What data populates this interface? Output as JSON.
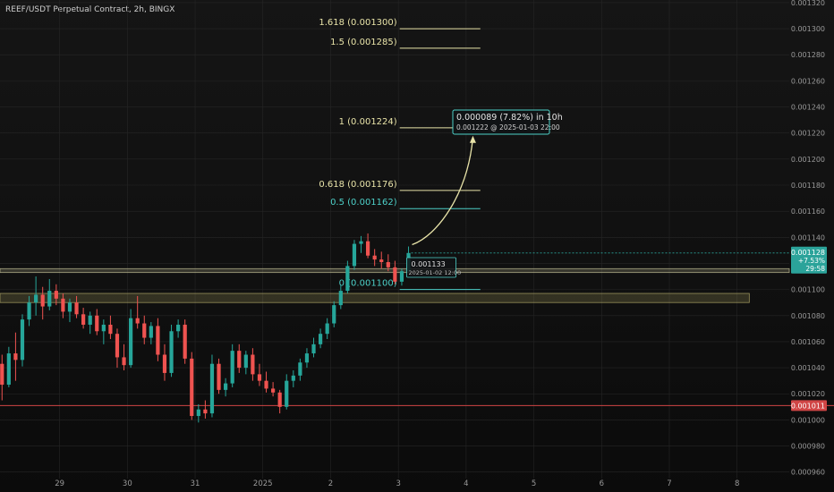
{
  "header": {
    "title": "REEF/USDT Perpetual Contract, 2h, BINGX"
  },
  "chart_data": {
    "type": "candlestick",
    "title": "REEF/USDT Perpetual Contract, 2h, BINGX",
    "ylim": [
      0.000955,
      0.001322
    ],
    "y_ticks": [
      "0.001320",
      "0.001300",
      "0.001280",
      "0.001260",
      "0.001240",
      "0.001220",
      "0.001200",
      "0.001180",
      "0.001160",
      "0.001140",
      "0.001120",
      "0.001100",
      "0.001080",
      "0.001060",
      "0.001040",
      "0.001020",
      "0.001000",
      "0.000980",
      "0.000960"
    ],
    "x_ticks": [
      {
        "label": "29",
        "i": 8.5
      },
      {
        "label": "30",
        "i": 18.5
      },
      {
        "label": "31",
        "i": 28.5
      },
      {
        "label": "2025",
        "i": 38.5
      },
      {
        "label": "2",
        "i": 48.5
      },
      {
        "label": "3",
        "i": 58.5
      },
      {
        "label": "4",
        "i": 68.5
      },
      {
        "label": "5",
        "i": 78.5
      },
      {
        "label": "6",
        "i": 88.5
      },
      {
        "label": "7",
        "i": 98.5
      },
      {
        "label": "8",
        "i": 108.5
      }
    ],
    "x_range": [
      -0.3,
      116.2
    ],
    "candles": [
      [
        0.001043,
        0.00105,
        0.001015,
        0.001027
      ],
      [
        0.001027,
        0.001056,
        0.001025,
        0.001051
      ],
      [
        0.001051,
        0.001067,
        0.00103,
        0.001046
      ],
      [
        0.001046,
        0.001081,
        0.001041,
        0.001077
      ],
      [
        0.001077,
        0.001095,
        0.001072,
        0.00109
      ],
      [
        0.00109,
        0.00111,
        0.00108,
        0.001096
      ],
      [
        0.001096,
        0.001102,
        0.001077,
        0.001087
      ],
      [
        0.001087,
        0.001108,
        0.001084,
        0.001099
      ],
      [
        0.001099,
        0.001104,
        0.001088,
        0.001093
      ],
      [
        0.001093,
        0.001097,
        0.001078,
        0.001083
      ],
      [
        0.001083,
        0.001093,
        0.001075,
        0.00109
      ],
      [
        0.00109,
        0.001095,
        0.001078,
        0.001081
      ],
      [
        0.001081,
        0.001086,
        0.00107,
        0.001073
      ],
      [
        0.001073,
        0.001083,
        0.001066,
        0.00108
      ],
      [
        0.00108,
        0.001085,
        0.001065,
        0.001068
      ],
      [
        0.001068,
        0.001077,
        0.001058,
        0.001073
      ],
      [
        0.001073,
        0.00108,
        0.001062,
        0.001066
      ],
      [
        0.001066,
        0.00107,
        0.00104,
        0.001048
      ],
      [
        0.001048,
        0.001058,
        0.001038,
        0.001042
      ],
      [
        0.001042,
        0.001085,
        0.00104,
        0.001078
      ],
      [
        0.001078,
        0.001095,
        0.00107,
        0.001074
      ],
      [
        0.001074,
        0.00108,
        0.001058,
        0.001063
      ],
      [
        0.001063,
        0.001075,
        0.001058,
        0.001072
      ],
      [
        0.001072,
        0.001078,
        0.001045,
        0.00105
      ],
      [
        0.00105,
        0.001058,
        0.00103,
        0.001036
      ],
      [
        0.001036,
        0.001073,
        0.001033,
        0.001068
      ],
      [
        0.001068,
        0.001077,
        0.001063,
        0.001073
      ],
      [
        0.001073,
        0.001077,
        0.001043,
        0.001047
      ],
      [
        0.001047,
        0.001052,
        0.001,
        0.001003
      ],
      [
        0.001003,
        0.001012,
        0.000998,
        0.001008
      ],
      [
        0.001008,
        0.001015,
        0.001001,
        0.001005
      ],
      [
        0.001005,
        0.00105,
        0.001002,
        0.001043
      ],
      [
        0.001043,
        0.001047,
        0.00102,
        0.001023
      ],
      [
        0.001023,
        0.001032,
        0.001018,
        0.001028
      ],
      [
        0.001028,
        0.001058,
        0.001025,
        0.001053
      ],
      [
        0.001053,
        0.001058,
        0.001036,
        0.00104
      ],
      [
        0.00104,
        0.001053,
        0.001035,
        0.00105
      ],
      [
        0.00105,
        0.001055,
        0.00103,
        0.001035
      ],
      [
        0.001035,
        0.001043,
        0.001026,
        0.00103
      ],
      [
        0.00103,
        0.001037,
        0.001021,
        0.001024
      ],
      [
        0.001024,
        0.001029,
        0.001018,
        0.001021
      ],
      [
        0.001021,
        0.001023,
        0.001005,
        0.00101
      ],
      [
        0.00101,
        0.001035,
        0.001008,
        0.00103
      ],
      [
        0.00103,
        0.001038,
        0.001025,
        0.001034
      ],
      [
        0.001034,
        0.001047,
        0.00103,
        0.001044
      ],
      [
        0.001044,
        0.001055,
        0.00104,
        0.001051
      ],
      [
        0.001051,
        0.001063,
        0.001048,
        0.001058
      ],
      [
        0.001058,
        0.00107,
        0.001055,
        0.001066
      ],
      [
        0.001066,
        0.001078,
        0.001062,
        0.001074
      ],
      [
        0.001074,
        0.001091,
        0.001071,
        0.001088
      ],
      [
        0.001088,
        0.001103,
        0.001085,
        0.001099
      ],
      [
        0.001099,
        0.001122,
        0.001097,
        0.001118
      ],
      [
        0.001118,
        0.001138,
        0.001115,
        0.001135
      ],
      [
        0.001135,
        0.001141,
        0.001128,
        0.001137
      ],
      [
        0.001137,
        0.001143,
        0.001124,
        0.001126
      ],
      [
        0.001126,
        0.001131,
        0.001118,
        0.001123
      ],
      [
        0.001123,
        0.001129,
        0.001116,
        0.001121
      ],
      [
        0.001121,
        0.001127,
        0.001114,
        0.001117
      ],
      [
        0.001117,
        0.001122,
        0.001104,
        0.001106
      ],
      [
        0.001106,
        0.001116,
        0.001103,
        0.001114
      ],
      [
        0.001114,
        0.001133,
        0.001113,
        0.001128
      ]
    ],
    "fib_levels": [
      {
        "ratio": "0",
        "price": 0.0011,
        "label": "0 (0.001100)",
        "color": "#4dd0c8"
      },
      {
        "ratio": "0.5",
        "price": 0.001162,
        "label": "0.5 (0.001162)",
        "color": "#4dd0c8"
      },
      {
        "ratio": "0.618",
        "price": 0.001176,
        "label": "0.618 (0.001176)",
        "color": "#e8e3a8"
      },
      {
        "ratio": "1",
        "price": 0.001224,
        "label": "1 (0.001224)",
        "color": "#e8e3a8"
      },
      {
        "ratio": "1.5",
        "price": 0.001285,
        "label": "1.5 (0.001285)",
        "color": "#e8e3a8"
      },
      {
        "ratio": "1.618",
        "price": 0.0013,
        "label": "1.618 (0.001300)",
        "color": "#e8e3a8"
      }
    ],
    "zones": [
      {
        "top": 0.001116,
        "bottom": 0.001113,
        "x_end": 116.2,
        "color": "#c9c59a"
      },
      {
        "top": 0.001097,
        "bottom": 0.00109,
        "x_end": 110.3,
        "color": "#b5ad6a"
      }
    ],
    "support_line": {
      "price": 0.001011,
      "color": "#d04545"
    },
    "last_price": {
      "price": 0.001128,
      "label": "0.001128",
      "change": "+7.53%",
      "countdown": "29:58",
      "color": "#2ba39a"
    },
    "support_badge": {
      "price": 0.001011,
      "label": "0.001011",
      "color": "#d04545"
    },
    "callout_small": {
      "line1": "0.001133",
      "line2": "2025-01-02 12:00"
    },
    "callout_target": {
      "line1": "0.000089 (7.82%) in 10h",
      "line2": "0.001222 @ 2025-01-03  22:00",
      "price": 0.001222
    },
    "colors": {
      "up": "#26a69a",
      "down": "#ef5350",
      "grid": "#262626",
      "axis_text": "#9a9a9a"
    }
  }
}
